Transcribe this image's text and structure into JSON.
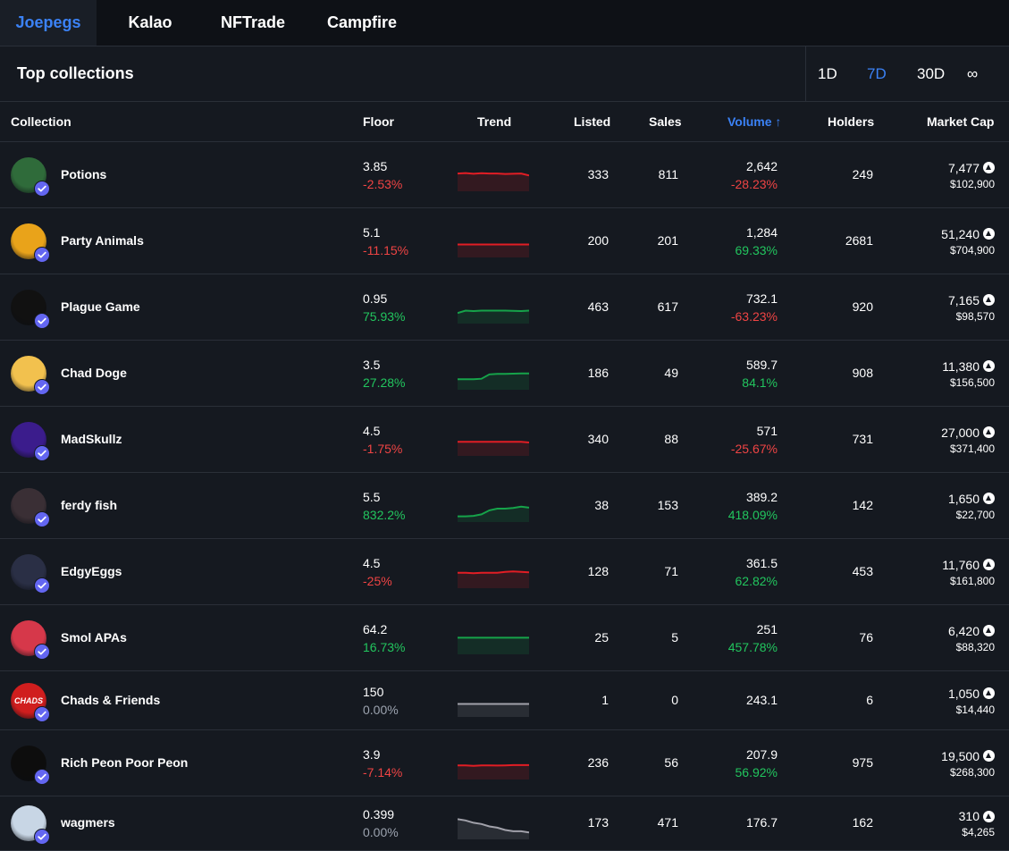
{
  "tabs": [
    {
      "label": "Joepegs",
      "active": true
    },
    {
      "label": "Kalao",
      "active": false
    },
    {
      "label": "NFTrade",
      "active": false
    },
    {
      "label": "Campfire",
      "active": false
    }
  ],
  "header": {
    "title": "Top collections"
  },
  "periods": [
    {
      "label": "1D",
      "active": false
    },
    {
      "label": "7D",
      "active": true
    },
    {
      "label": "30D",
      "active": false
    },
    {
      "label": "∞",
      "active": false
    }
  ],
  "columns": {
    "collection": "Collection",
    "floor": "Floor",
    "trend": "Trend",
    "listed": "Listed",
    "sales": "Sales",
    "volume": "Volume ↑",
    "holders": "Holders",
    "market_cap": "Market Cap"
  },
  "colors": {
    "accent": "#3b82f6",
    "negative": "#ef4444",
    "positive": "#22c55e",
    "neutral": "#9ca3af",
    "verified": "#6366f1"
  },
  "rows": [
    {
      "name": "Potions",
      "floor": "3.85",
      "floor_change": "-2.53%",
      "floor_dir": "neg",
      "listed": "333",
      "sales": "811",
      "volume": "2,642",
      "volume_change": "-28.23%",
      "volume_dir": "neg",
      "holders": "249",
      "mcap": "7,477",
      "mcap_usd": "$102,900",
      "trend_color": "#e11d24",
      "trend": [
        0.7,
        0.72,
        0.69,
        0.71,
        0.7,
        0.7,
        0.68,
        0.69,
        0.7,
        0.62
      ],
      "avatar_color": "#2f6b3a",
      "icon": "potion-avatar-icon"
    },
    {
      "name": "Party Animals",
      "floor": "5.1",
      "floor_change": "-11.15%",
      "floor_dir": "neg",
      "listed": "200",
      "sales": "201",
      "volume": "1,284",
      "volume_change": "69.33%",
      "volume_dir": "pos",
      "holders": "2681",
      "mcap": "51,240",
      "mcap_usd": "$704,900",
      "trend_color": "#e11d24",
      "trend": [
        0.5,
        0.5,
        0.5,
        0.5,
        0.5,
        0.5,
        0.5,
        0.5,
        0.5,
        0.5
      ],
      "avatar_color": "#e9a31a",
      "icon": "party-animal-avatar-icon"
    },
    {
      "name": "Plague Game",
      "floor": "0.95",
      "floor_change": "75.93%",
      "floor_dir": "pos",
      "listed": "463",
      "sales": "617",
      "volume": "732.1",
      "volume_change": "-63.23%",
      "volume_dir": "neg",
      "holders": "920",
      "mcap": "7,165",
      "mcap_usd": "$98,570",
      "trend_color": "#16a34a",
      "trend": [
        0.4,
        0.5,
        0.48,
        0.5,
        0.5,
        0.5,
        0.5,
        0.49,
        0.48,
        0.5
      ],
      "avatar_color": "#111111",
      "icon": "plague-doctor-avatar-icon"
    },
    {
      "name": "Chad Doge",
      "floor": "3.5",
      "floor_change": "27.28%",
      "floor_dir": "pos",
      "listed": "186",
      "sales": "49",
      "volume": "589.7",
      "volume_change": "84.1%",
      "volume_dir": "pos",
      "holders": "908",
      "mcap": "11,380",
      "mcap_usd": "$156,500",
      "trend_color": "#16a34a",
      "trend": [
        0.4,
        0.4,
        0.4,
        0.42,
        0.6,
        0.62,
        0.62,
        0.63,
        0.64,
        0.64
      ],
      "avatar_color": "#f2c14e",
      "icon": "doge-avatar-icon"
    },
    {
      "name": "MadSkullz",
      "floor": "4.5",
      "floor_change": "-1.75%",
      "floor_dir": "neg",
      "listed": "340",
      "sales": "88",
      "volume": "571",
      "volume_change": "-25.67%",
      "volume_dir": "neg",
      "holders": "731",
      "mcap": "27,000",
      "mcap_usd": "$371,400",
      "trend_color": "#e11d24",
      "trend": [
        0.55,
        0.55,
        0.55,
        0.55,
        0.55,
        0.55,
        0.55,
        0.55,
        0.55,
        0.52
      ],
      "avatar_color": "#3b1c8c",
      "icon": "skull-avatar-icon"
    },
    {
      "name": "ferdy fish",
      "floor": "5.5",
      "floor_change": "832.2%",
      "floor_dir": "pos",
      "listed": "38",
      "sales": "153",
      "volume": "389.2",
      "volume_change": "418.09%",
      "volume_dir": "pos",
      "holders": "142",
      "mcap": "1,650",
      "mcap_usd": "$22,700",
      "trend_color": "#16a34a",
      "trend": [
        0.2,
        0.2,
        0.22,
        0.28,
        0.45,
        0.52,
        0.52,
        0.55,
        0.6,
        0.56
      ],
      "avatar_color": "#3a2f35",
      "icon": "ghost-avatar-icon"
    },
    {
      "name": "EdgyEggs",
      "floor": "4.5",
      "floor_change": "-25%",
      "floor_dir": "neg",
      "listed": "128",
      "sales": "71",
      "volume": "361.5",
      "volume_change": "62.82%",
      "volume_dir": "pos",
      "holders": "453",
      "mcap": "11,760",
      "mcap_usd": "$161,800",
      "trend_color": "#e11d24",
      "trend": [
        0.6,
        0.6,
        0.58,
        0.6,
        0.6,
        0.6,
        0.64,
        0.66,
        0.64,
        0.62
      ],
      "avatar_color": "#2a2f45",
      "icon": "egg-avatar-icon"
    },
    {
      "name": "Smol APAs",
      "floor": "64.2",
      "floor_change": "16.73%",
      "floor_dir": "pos",
      "listed": "25",
      "sales": "5",
      "volume": "251",
      "volume_change": "457.78%",
      "volume_dir": "pos",
      "holders": "76",
      "mcap": "6,420",
      "mcap_usd": "$88,320",
      "trend_color": "#16a34a",
      "trend": [
        0.65,
        0.65,
        0.65,
        0.65,
        0.65,
        0.65,
        0.65,
        0.65,
        0.65,
        0.65
      ],
      "avatar_color": "#d6384a",
      "icon": "ape-avatar-icon"
    },
    {
      "name": "Chads & Friends",
      "floor": "150",
      "floor_change": "0.00%",
      "floor_dir": "neu",
      "listed": "1",
      "sales": "0",
      "volume": "243.1",
      "volume_change": "",
      "volume_dir": "neu",
      "holders": "6",
      "mcap": "1,050",
      "mcap_usd": "$14,440",
      "trend_color": "#a1a1aa",
      "trend": [
        0.5,
        0.5,
        0.5,
        0.5,
        0.5,
        0.5,
        0.5,
        0.5,
        0.5,
        0.5
      ],
      "avatar_color": "#d01e1e",
      "icon": "chads-logo-avatar-icon",
      "avatar_text": "CHADS"
    },
    {
      "name": "Rich Peon Poor Peon",
      "floor": "3.9",
      "floor_change": "-7.14%",
      "floor_dir": "neg",
      "listed": "236",
      "sales": "56",
      "volume": "207.9",
      "volume_change": "56.92%",
      "volume_dir": "pos",
      "holders": "975",
      "mcap": "19,500",
      "mcap_usd": "$268,300",
      "trend_color": "#e11d24",
      "trend": [
        0.55,
        0.55,
        0.53,
        0.55,
        0.55,
        0.54,
        0.55,
        0.56,
        0.56,
        0.56
      ],
      "avatar_color": "#0d0d0d",
      "icon": "peon-avatar-icon"
    },
    {
      "name": "wagmers",
      "floor": "0.399",
      "floor_change": "0.00%",
      "floor_dir": "neu",
      "listed": "173",
      "sales": "471",
      "volume": "176.7",
      "volume_change": "",
      "volume_dir": "neu",
      "holders": "162",
      "mcap": "310",
      "mcap_usd": "$4,265",
      "trend_color": "#a1a1aa",
      "trend": [
        0.8,
        0.75,
        0.65,
        0.6,
        0.5,
        0.45,
        0.35,
        0.3,
        0.3,
        0.25
      ],
      "avatar_color": "#c8d6e5",
      "icon": "alien-avatar-icon"
    }
  ]
}
